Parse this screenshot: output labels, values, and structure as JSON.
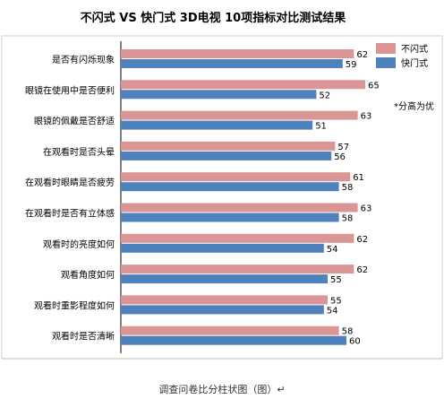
{
  "chart_data": {
    "type": "bar",
    "orientation": "horizontal",
    "title": "不闪式 VS 快门式 3D电视 10项指标对比测试结果",
    "categories": [
      "是否有闪烁现象",
      "眼镜在使用中是否便利",
      "眼镜的佩戴是否舒适",
      "在观看时是否头晕",
      "在观看时眼睛是否疲劳",
      "在观看时是否有立体感",
      "观看时的亮度如何",
      "观看角度如何",
      "观看时重影程度如何",
      "观看时是否清晰"
    ],
    "series": [
      {
        "name": "不闪式",
        "color": "#d99694",
        "values": [
          62,
          65,
          63,
          57,
          61,
          63,
          62,
          62,
          55,
          58
        ]
      },
      {
        "name": "快门式",
        "color": "#4f81bd",
        "values": [
          59,
          52,
          51,
          56,
          58,
          58,
          54,
          55,
          54,
          60
        ]
      }
    ],
    "annotation": "*分高为优",
    "legend_position": "top-right",
    "grid": false
  },
  "caption": "调查问卷比分柱状图（图）↵"
}
